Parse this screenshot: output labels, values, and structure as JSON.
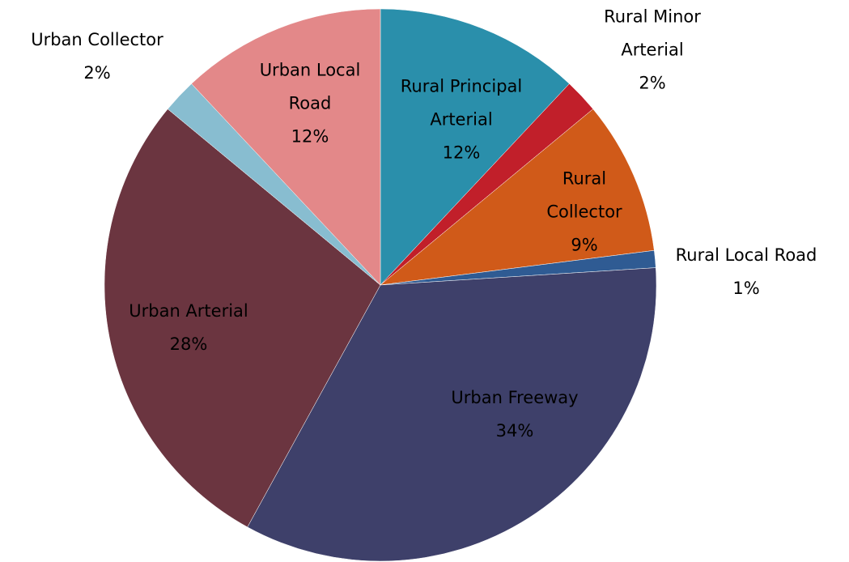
{
  "chart_data": {
    "type": "pie",
    "categories": [
      "Rural Principal Arterial",
      "Rural Minor Arterial",
      "Rural Collector",
      "Rural Local Road",
      "Urban Freeway",
      "Urban Arterial",
      "Urban Collector",
      "Urban Local Road"
    ],
    "values": [
      12,
      2,
      9,
      1,
      34,
      28,
      2,
      12
    ],
    "value_labels": [
      "12%",
      "2%",
      "9%",
      "1%",
      "34%",
      "28%",
      "2%",
      "12%"
    ],
    "colors": [
      "#2a8fab",
      "#c11f2a",
      "#d05a19",
      "#2f5b93",
      "#3e406a",
      "#6b3540",
      "#88bdd0",
      "#e38889"
    ]
  }
}
